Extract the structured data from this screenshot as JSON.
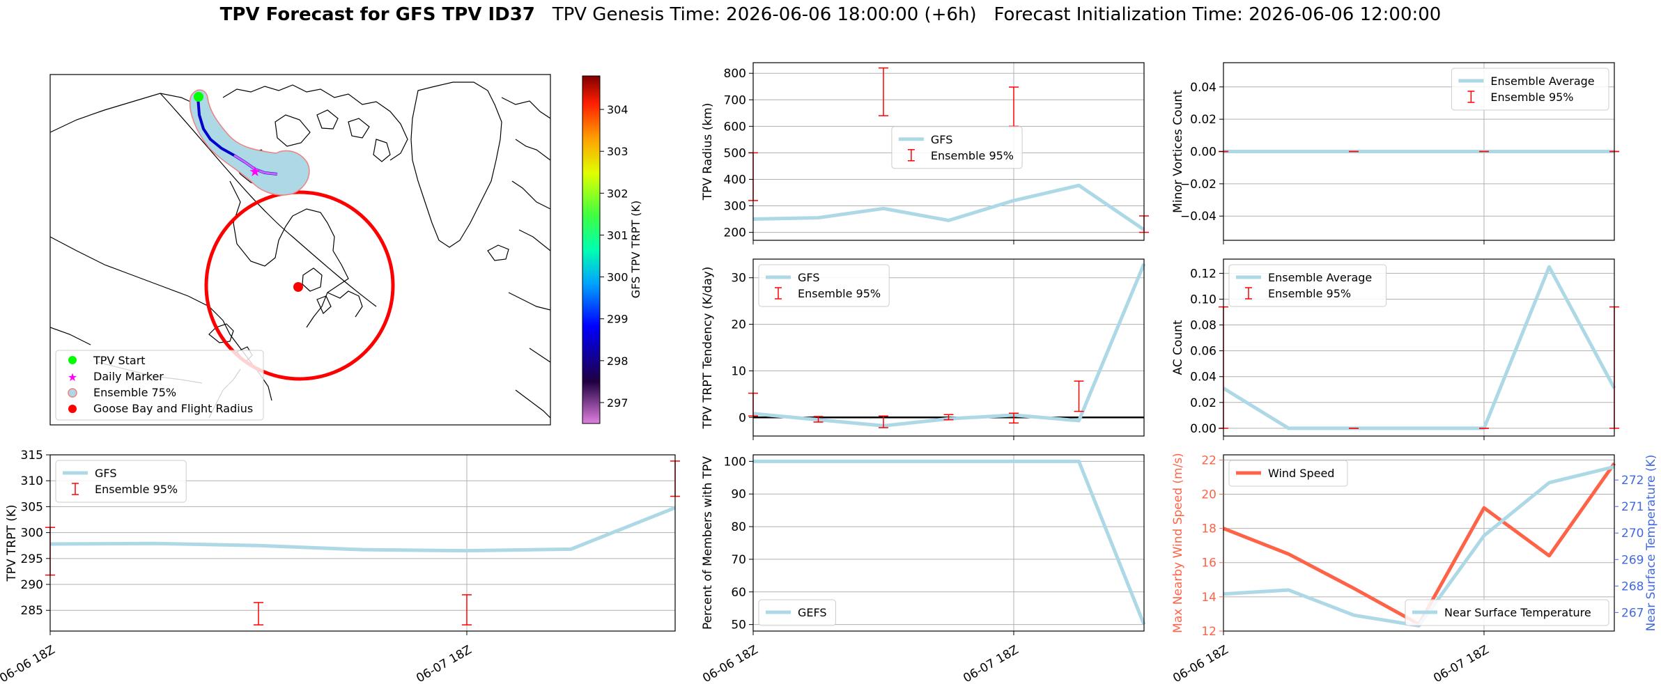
{
  "title": {
    "bold": "TPV Forecast for GFS TPV ID37",
    "genesis": "TPV Genesis Time: 2026-06-06 18:00:00 (+6h)",
    "init": "Forecast Initialization Time: 2026-06-06 12:00:00"
  },
  "colors": {
    "gfs_line": "#add8e6",
    "errorbar": "#ff0000",
    "wind": "#ff6347",
    "temp_axis": "#4169e1"
  },
  "chart_data": [
    {
      "id": "map",
      "type": "scatter",
      "legend": [
        "TPV Start",
        "Daily Marker",
        "Ensemble 75%",
        "Goose Bay and Flight Radius"
      ],
      "legend_position": "lower-left",
      "colorbar": {
        "label": "GFS TPV TRPT (K)",
        "ticks": [
          297,
          298,
          299,
          300,
          301,
          302,
          303,
          304
        ],
        "range": [
          296.5,
          304.8
        ]
      }
    },
    {
      "id": "trpt",
      "type": "line",
      "ylabel": "TPV TRPT (K)",
      "ylim": [
        281,
        315
      ],
      "yticks": [
        285,
        290,
        295,
        300,
        305,
        310,
        315
      ],
      "x_hours": [
        0,
        6,
        12,
        18,
        24,
        30,
        36
      ],
      "xticks": [
        {
          "h": 0,
          "label": "06-06 18Z"
        },
        {
          "h": 24,
          "label": "06-07 18Z"
        }
      ],
      "series": [
        {
          "name": "GFS",
          "values": [
            297.8,
            297.9,
            297.5,
            296.7,
            296.5,
            296.8,
            304.8
          ]
        }
      ],
      "errorbars": [
        {
          "h": 0,
          "low": 291.8,
          "high": 301.0
        },
        {
          "h": 12,
          "low": 282.2,
          "high": 286.5
        },
        {
          "h": 24,
          "low": 282.2,
          "high": 288.0
        },
        {
          "h": 36,
          "low": 307.0,
          "high": 313.8
        }
      ],
      "errorbar_name": "Ensemble 95%",
      "legend_position": "upper-left",
      "grid": true
    },
    {
      "id": "radius",
      "type": "line",
      "ylabel": "TPV Radius (km)",
      "ylim": [
        170,
        840
      ],
      "yticks": [
        200,
        300,
        400,
        500,
        600,
        700,
        800
      ],
      "x_hours": [
        0,
        6,
        12,
        18,
        24,
        30,
        36
      ],
      "xticks": [
        {
          "h": 0,
          "label": ""
        },
        {
          "h": 24,
          "label": ""
        }
      ],
      "series": [
        {
          "name": "GFS",
          "values": [
            250,
            255,
            290,
            245,
            320,
            377,
            210
          ]
        }
      ],
      "errorbars": [
        {
          "h": 0,
          "low": 320,
          "high": 500
        },
        {
          "h": 12,
          "low": 640,
          "high": 820
        },
        {
          "h": 24,
          "low": 600,
          "high": 748
        },
        {
          "h": 36,
          "low": 200,
          "high": 262
        }
      ],
      "errorbar_name": "Ensemble 95%",
      "legend_position": "center",
      "grid": true
    },
    {
      "id": "tendency",
      "type": "line",
      "ylabel": "TPV TRPT Tendency (K/day)",
      "ylim": [
        -4,
        34
      ],
      "yticks": [
        0,
        10,
        20,
        30
      ],
      "x_hours": [
        0,
        6,
        12,
        18,
        24,
        30,
        36
      ],
      "xticks": [
        {
          "h": 0,
          "label": ""
        },
        {
          "h": 24,
          "label": ""
        }
      ],
      "series": [
        {
          "name": "GFS",
          "values": [
            0.8,
            -0.5,
            -1.8,
            -0.3,
            0.5,
            -0.7,
            33
          ]
        }
      ],
      "errorbars": [
        {
          "h": 0,
          "low": 0.3,
          "high": 5.2
        },
        {
          "h": 6,
          "low": -1.0,
          "high": 0.2
        },
        {
          "h": 12,
          "low": -2.2,
          "high": 0.3
        },
        {
          "h": 18,
          "low": -0.5,
          "high": 0.6
        },
        {
          "h": 24,
          "low": -1.2,
          "high": 0.9
        },
        {
          "h": 30,
          "low": 1.3,
          "high": 7.8
        }
      ],
      "errorbar_name": "Ensemble 95%",
      "hline": 0,
      "legend_position": "upper-left",
      "grid": true
    },
    {
      "id": "members",
      "type": "line",
      "ylabel": "Percent of Members with TPV",
      "ylim": [
        48,
        102
      ],
      "yticks": [
        50,
        60,
        70,
        80,
        90,
        100
      ],
      "x_hours": [
        0,
        6,
        12,
        18,
        24,
        30,
        36
      ],
      "xticks": [
        {
          "h": 0,
          "label": "06-06 18Z"
        },
        {
          "h": 24,
          "label": "06-07 18Z"
        }
      ],
      "series": [
        {
          "name": "GEFS",
          "values": [
            100,
            100,
            100,
            100,
            100,
            100,
            50
          ]
        }
      ],
      "legend_position": "lower-left",
      "grid": true
    },
    {
      "id": "minor",
      "type": "line",
      "ylabel": "Minor Vortices Count",
      "ylim": [
        -0.055,
        0.055
      ],
      "yticks": [
        -0.04,
        -0.02,
        0.0,
        0.02,
        0.04
      ],
      "ytick_labels": [
        "−0.04",
        "−0.02",
        "0.00",
        "0.02",
        "0.04"
      ],
      "x_hours": [
        0,
        6,
        12,
        18,
        24,
        30,
        36
      ],
      "xticks": [
        {
          "h": 0,
          "label": ""
        },
        {
          "h": 24,
          "label": ""
        }
      ],
      "series": [
        {
          "name": "Ensemble Average",
          "values": [
            0,
            0,
            0,
            0,
            0,
            0,
            0
          ]
        }
      ],
      "errorbars": [
        {
          "h": 0,
          "low": 0,
          "high": 0
        },
        {
          "h": 12,
          "low": 0,
          "high": 0
        },
        {
          "h": 24,
          "low": 0,
          "high": 0
        },
        {
          "h": 36,
          "low": 0,
          "high": 0
        }
      ],
      "errorbar_name": "Ensemble 95%",
      "legend_position": "upper-right",
      "grid": true
    },
    {
      "id": "ac",
      "type": "line",
      "ylabel": "AC Count",
      "ylim": [
        -0.006,
        0.131
      ],
      "yticks": [
        0.0,
        0.02,
        0.04,
        0.06,
        0.08,
        0.1,
        0.12
      ],
      "ytick_labels": [
        "0.00",
        "0.02",
        "0.04",
        "0.06",
        "0.08",
        "0.10",
        "0.12"
      ],
      "x_hours": [
        0,
        6,
        12,
        18,
        24,
        30,
        36
      ],
      "xticks": [
        {
          "h": 0,
          "label": ""
        },
        {
          "h": 24,
          "label": ""
        }
      ],
      "series": [
        {
          "name": "Ensemble Average",
          "values": [
            0.031,
            0.0,
            0.0,
            0.0,
            0.0,
            0.125,
            0.031
          ]
        }
      ],
      "errorbars": [
        {
          "h": 0,
          "low": 0,
          "high": 0.094
        },
        {
          "h": 12,
          "low": 0,
          "high": 0
        },
        {
          "h": 24,
          "low": 0,
          "high": 0
        },
        {
          "h": 36,
          "low": 0,
          "high": 0.094
        }
      ],
      "errorbar_name": "Ensemble 95%",
      "legend_position": "upper-left",
      "grid": true
    },
    {
      "id": "wind",
      "type": "line",
      "ylabel": "Max Nearby Wind Speed (m/s)",
      "ylim": [
        12,
        22.3
      ],
      "yticks": [
        12,
        14,
        16,
        18,
        20,
        22
      ],
      "x_hours": [
        0,
        6,
        12,
        18,
        24,
        30,
        36
      ],
      "xticks": [
        {
          "h": 0,
          "label": "06-06 18Z"
        },
        {
          "h": 24,
          "label": "06-07 18Z"
        }
      ],
      "series": [
        {
          "name": "Wind Speed",
          "axis": "left",
          "values": [
            18.0,
            16.5,
            14.5,
            12.4,
            19.2,
            16.4,
            21.8
          ]
        },
        {
          "name": "Near Surface Temperature",
          "axis": "right",
          "values": [
            267.7,
            267.85,
            266.9,
            266.5,
            269.9,
            271.9,
            272.5
          ]
        }
      ],
      "y2label": "Near Surface Temperature (K)",
      "y2lim": [
        266.3,
        272.95
      ],
      "y2ticks": [
        267,
        268,
        269,
        270,
        271,
        272
      ],
      "legend_positions": [
        "upper-left",
        "lower-right"
      ],
      "grid": true
    }
  ]
}
